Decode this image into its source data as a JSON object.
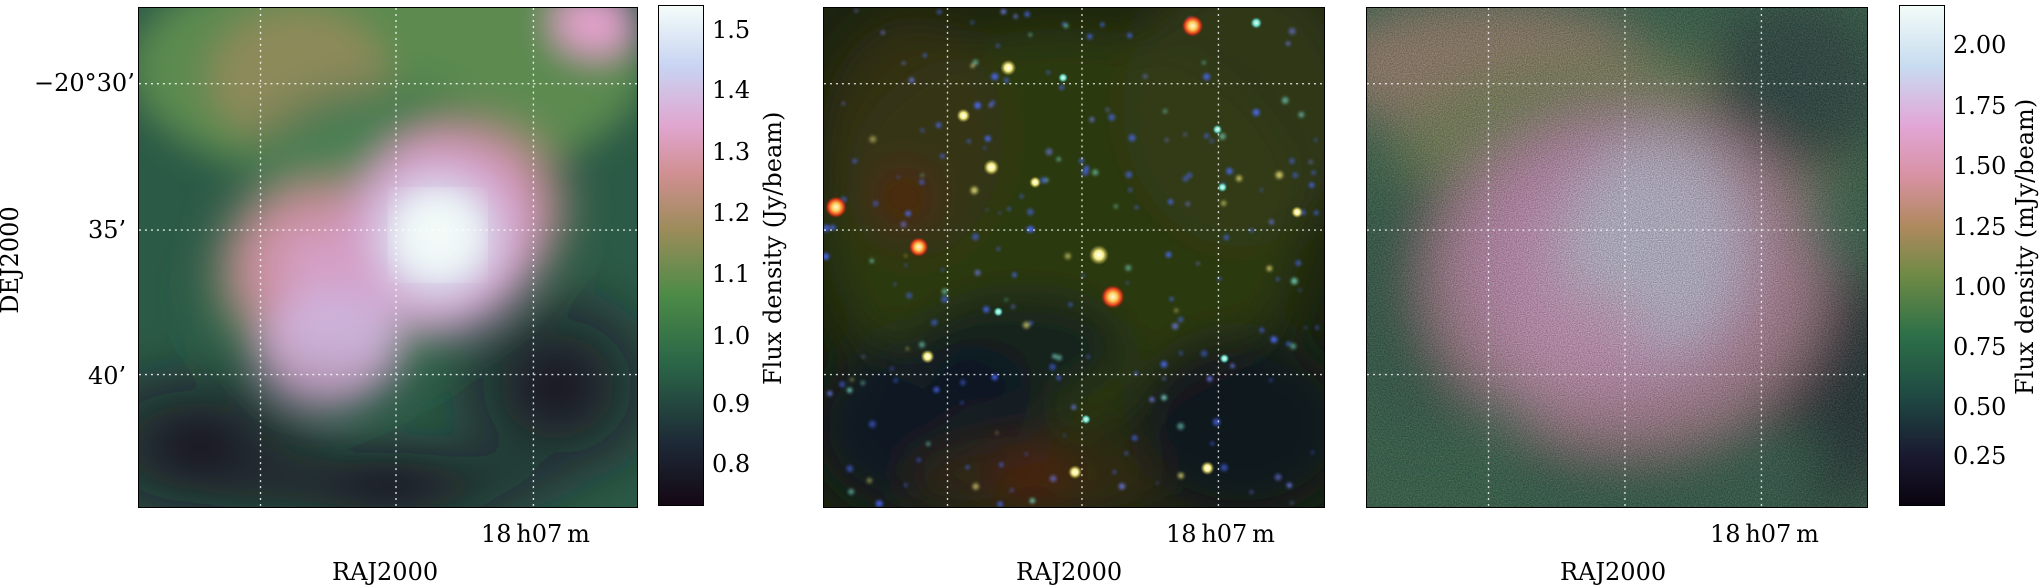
{
  "axes": {
    "dec_axis_label": "DEJ2000",
    "ra_axis_label": "RAJ2000",
    "dec_tick_labels": [
      "−20°30’",
      "35’",
      "40’"
    ],
    "ra_tick_label": "18 h07 m"
  },
  "panels": [
    {
      "id": "left",
      "colorbar": {
        "label": "Flux density (Jy/beam)",
        "ticks": [
          "0.8",
          "0.9",
          "1.0",
          "1.1",
          "1.2",
          "1.3",
          "1.4",
          "1.5"
        ]
      }
    },
    {
      "id": "middle"
    },
    {
      "id": "right",
      "colorbar": {
        "label": "Flux density (mJy/beam)",
        "ticks": [
          "0.25",
          "0.50",
          "0.75",
          "1.00",
          "1.25",
          "1.50",
          "1.75",
          "2.00"
        ]
      }
    }
  ],
  "colors": {
    "colormap": [
      "#1a0d1e",
      "#1d3a3a",
      "#2f6d45",
      "#7b8b4a",
      "#c98b87",
      "#e6a3cf",
      "#cfe0f2",
      "#f4fbf8"
    ],
    "grid_color": "#ffffff"
  }
}
